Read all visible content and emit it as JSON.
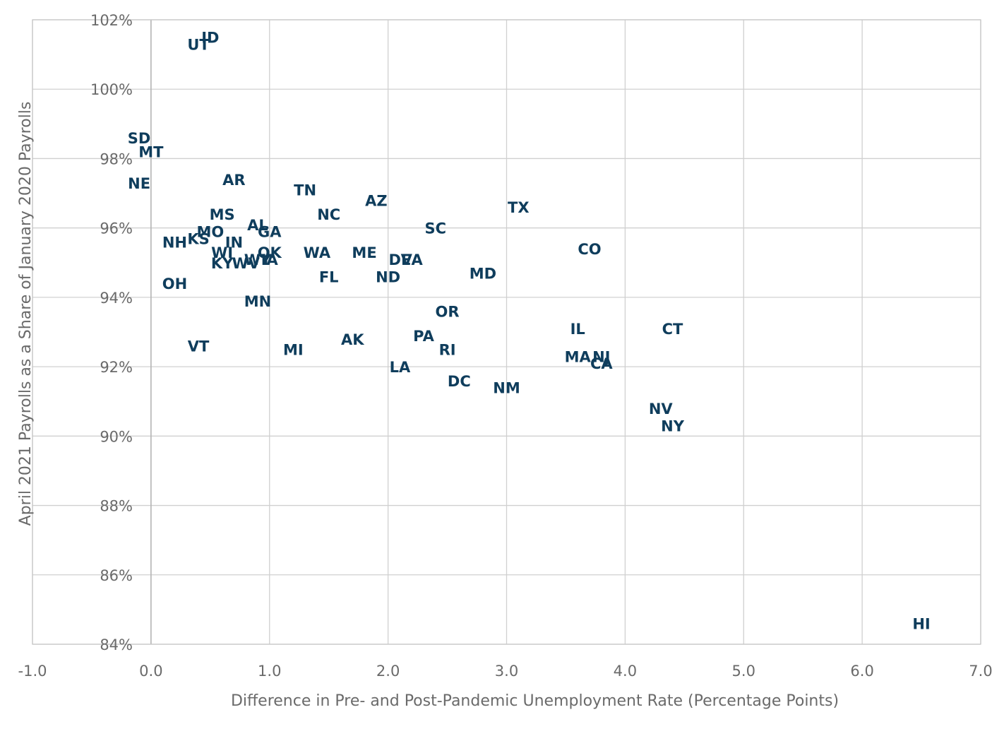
{
  "chart_data": {
    "type": "scatter",
    "title": "",
    "xlabel": "Difference in Pre- and Post-Pandemic Unemployment Rate (Percentage Points)",
    "ylabel": "April 2021 Payrolls as a Share of January 2020 Payrolls",
    "xlim": [
      -1.0,
      7.0
    ],
    "ylim": [
      84,
      102
    ],
    "x_ticks": [
      -1.0,
      0.0,
      1.0,
      2.0,
      3.0,
      4.0,
      5.0,
      6.0,
      7.0
    ],
    "x_tick_labels": [
      "-1.0",
      "0.0",
      "1.0",
      "2.0",
      "3.0",
      "4.0",
      "5.0",
      "6.0",
      "7.0"
    ],
    "y_ticks": [
      84,
      86,
      88,
      90,
      92,
      94,
      96,
      98,
      100,
      102
    ],
    "y_tick_labels": [
      "84%",
      "86%",
      "88%",
      "90%",
      "92%",
      "94%",
      "96%",
      "98%",
      "100%",
      "102%"
    ],
    "grid": true,
    "label_color": "#0f3d5c",
    "marker": "state-abbreviation",
    "points": [
      {
        "label": "ID",
        "x": 0.5,
        "y": 101.5
      },
      {
        "label": "UT",
        "x": 0.4,
        "y": 101.3
      },
      {
        "label": "SD",
        "x": -0.1,
        "y": 98.6
      },
      {
        "label": "MT",
        "x": 0.0,
        "y": 98.2
      },
      {
        "label": "NE",
        "x": -0.1,
        "y": 97.3
      },
      {
        "label": "AR",
        "x": 0.7,
        "y": 97.4
      },
      {
        "label": "TN",
        "x": 1.3,
        "y": 97.1
      },
      {
        "label": "AZ",
        "x": 1.9,
        "y": 96.8
      },
      {
        "label": "TX",
        "x": 3.1,
        "y": 96.6
      },
      {
        "label": "MS",
        "x": 0.6,
        "y": 96.4
      },
      {
        "label": "NC",
        "x": 1.5,
        "y": 96.4
      },
      {
        "label": "AL",
        "x": 0.9,
        "y": 96.1
      },
      {
        "label": "SC",
        "x": 2.4,
        "y": 96.0
      },
      {
        "label": "GA",
        "x": 1.0,
        "y": 95.9
      },
      {
        "label": "MO",
        "x": 0.5,
        "y": 95.9
      },
      {
        "label": "KS",
        "x": 0.4,
        "y": 95.7
      },
      {
        "label": "NH",
        "x": 0.2,
        "y": 95.6
      },
      {
        "label": "IN",
        "x": 0.7,
        "y": 95.6
      },
      {
        "label": "CO",
        "x": 3.7,
        "y": 95.4
      },
      {
        "label": "WI",
        "x": 0.6,
        "y": 95.3
      },
      {
        "label": "WA",
        "x": 1.4,
        "y": 95.3
      },
      {
        "label": "ME",
        "x": 1.8,
        "y": 95.3
      },
      {
        "label": "OK",
        "x": 1.0,
        "y": 95.3
      },
      {
        "label": "IA",
        "x": 1.0,
        "y": 95.1
      },
      {
        "label": "WY",
        "x": 0.9,
        "y": 95.1
      },
      {
        "label": "DE",
        "x": 2.1,
        "y": 95.1
      },
      {
        "label": "VA",
        "x": 2.2,
        "y": 95.1
      },
      {
        "label": "KY",
        "x": 0.6,
        "y": 95.0
      },
      {
        "label": "WV",
        "x": 0.8,
        "y": 95.0
      },
      {
        "label": "MD",
        "x": 2.8,
        "y": 94.7
      },
      {
        "label": "FL",
        "x": 1.5,
        "y": 94.6
      },
      {
        "label": "ND",
        "x": 2.0,
        "y": 94.6
      },
      {
        "label": "OH",
        "x": 0.2,
        "y": 94.4
      },
      {
        "label": "MN",
        "x": 0.9,
        "y": 93.9
      },
      {
        "label": "OR",
        "x": 2.5,
        "y": 93.6
      },
      {
        "label": "IL",
        "x": 3.6,
        "y": 93.1
      },
      {
        "label": "CT",
        "x": 4.4,
        "y": 93.1
      },
      {
        "label": "PA",
        "x": 2.3,
        "y": 92.9
      },
      {
        "label": "AK",
        "x": 1.7,
        "y": 92.8
      },
      {
        "label": "VT",
        "x": 0.4,
        "y": 92.6
      },
      {
        "label": "MI",
        "x": 1.2,
        "y": 92.5
      },
      {
        "label": "RI",
        "x": 2.5,
        "y": 92.5
      },
      {
        "label": "MA",
        "x": 3.6,
        "y": 92.3
      },
      {
        "label": "NJ",
        "x": 3.8,
        "y": 92.3
      },
      {
        "label": "CA",
        "x": 3.8,
        "y": 92.1
      },
      {
        "label": "LA",
        "x": 2.1,
        "y": 92.0
      },
      {
        "label": "DC",
        "x": 2.6,
        "y": 91.6
      },
      {
        "label": "NM",
        "x": 3.0,
        "y": 91.4
      },
      {
        "label": "NV",
        "x": 4.3,
        "y": 90.8
      },
      {
        "label": "NY",
        "x": 4.4,
        "y": 90.3
      },
      {
        "label": "HI",
        "x": 6.5,
        "y": 84.6
      }
    ]
  }
}
